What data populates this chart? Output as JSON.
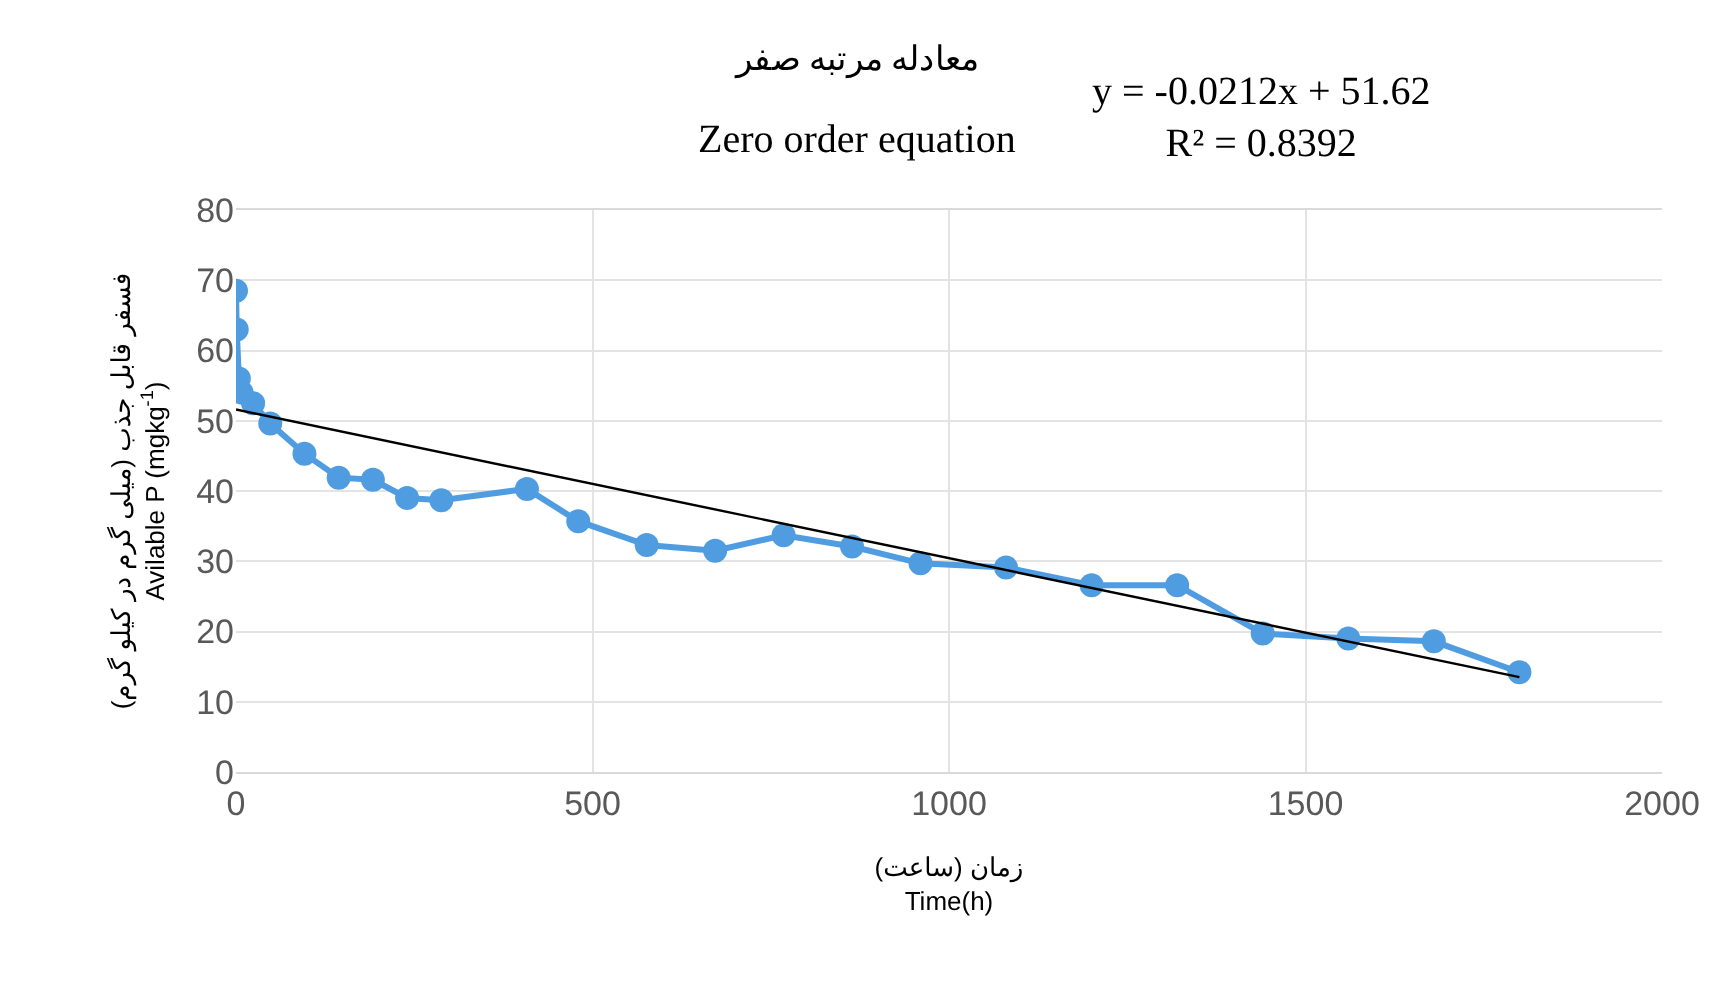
{
  "chart_data": {
    "type": "line",
    "title": "معادله مرتبه صفر",
    "subtitle": "Zero order equation",
    "xlabel": "زمان (ساعت)\nTime(h)",
    "ylabel": "فسفر قابل جذب (میلی گرم در کیلو گرم)\nAvilable P (mgkg$^{-1}$)",
    "annotations": [
      "y = -0.0212x + 51.62\nR² = 0.8392"
    ],
    "x": [
      0,
      1,
      4,
      8,
      24,
      48,
      96,
      144,
      192,
      240,
      288,
      408,
      480,
      576,
      672,
      768,
      864,
      960,
      1080,
      1200,
      1320,
      1440,
      1560,
      1680,
      1800
    ],
    "series": [
      {
        "color": "#4f9de0",
        "values": [
          68.5,
          63,
          56,
          54,
          52.5,
          49.6,
          45.3,
          41.9,
          41.6,
          39,
          38.7,
          40.3,
          35.7,
          32.3,
          31.5,
          33.7,
          32.1,
          29.7,
          29.1,
          26.6,
          26.6,
          19.7,
          19,
          18.6,
          14.2
        ]
      },
      {
        "type": "line",
        "color": "#000000",
        "marker": "none",
        "x": [
          0,
          1800
        ],
        "values": [
          51.6,
          13.5
        ]
      }
    ],
    "xlim": [
      0,
      2000
    ],
    "xticks": [
      0,
      500,
      1000,
      1500,
      2000
    ],
    "ylim": [
      0,
      80
    ],
    "yticks": [
      0,
      10,
      20,
      30,
      40,
      50,
      60,
      70,
      80
    ],
    "grid": true,
    "marker": "circle",
    "line_style": "solid"
  }
}
